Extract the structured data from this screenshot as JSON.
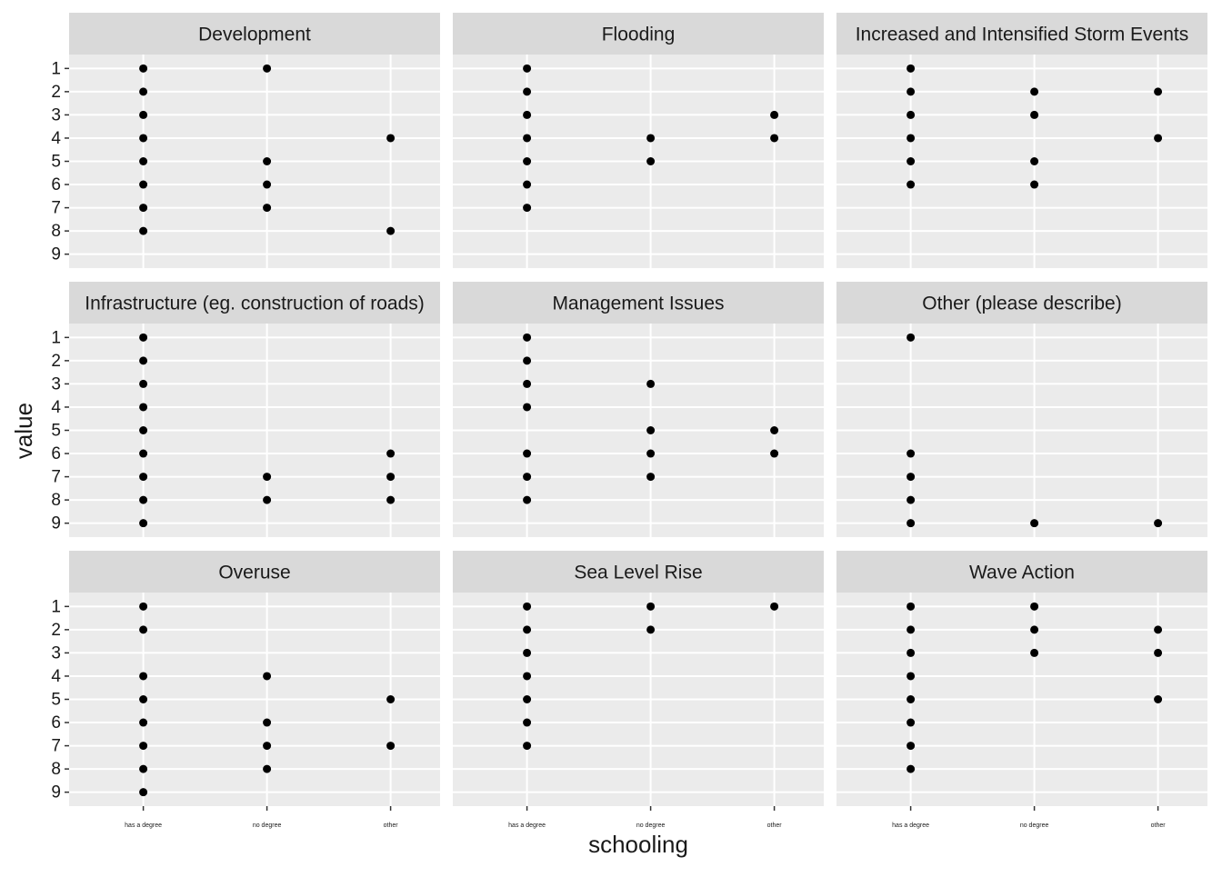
{
  "chart_data": {
    "type": "scatter",
    "x_label": "schooling",
    "y_label": "value",
    "categories": [
      "has a degree",
      "no degree",
      "other"
    ],
    "ylim": [
      0.4,
      9.6
    ],
    "y_reversed": true,
    "yticks": [
      1,
      2,
      3,
      4,
      5,
      6,
      7,
      8,
      9
    ],
    "grid": true,
    "color": "#000000",
    "facets": [
      {
        "title": "Development",
        "values": [
          [
            1,
            2,
            3,
            4,
            5,
            6,
            7,
            8
          ],
          [
            1,
            5,
            6,
            7
          ],
          [
            4,
            8
          ]
        ]
      },
      {
        "title": "Flooding",
        "values": [
          [
            1,
            2,
            3,
            4,
            5,
            6,
            7
          ],
          [
            4,
            5
          ],
          [
            3,
            4
          ]
        ]
      },
      {
        "title": "Increased and Intensified Storm Events",
        "values": [
          [
            1,
            2,
            3,
            4,
            5,
            6
          ],
          [
            2,
            3,
            5,
            6
          ],
          [
            2,
            4
          ]
        ]
      },
      {
        "title": "Infrastructure (eg. construction of roads)",
        "values": [
          [
            1,
            2,
            3,
            4,
            5,
            6,
            7,
            8,
            9
          ],
          [
            7,
            8
          ],
          [
            6,
            7,
            8
          ]
        ]
      },
      {
        "title": "Management Issues",
        "values": [
          [
            1,
            2,
            3,
            4,
            6,
            7,
            8
          ],
          [
            3,
            5,
            6,
            7
          ],
          [
            5,
            6
          ]
        ]
      },
      {
        "title": "Other (please describe)",
        "values": [
          [
            1,
            6,
            7,
            8,
            9
          ],
          [
            9
          ],
          [
            9
          ]
        ]
      },
      {
        "title": "Overuse",
        "values": [
          [
            1,
            2,
            4,
            5,
            6,
            7,
            8,
            9
          ],
          [
            4,
            6,
            7,
            8
          ],
          [
            5,
            7
          ]
        ]
      },
      {
        "title": "Sea Level Rise",
        "values": [
          [
            1,
            2,
            3,
            4,
            5,
            6,
            7
          ],
          [
            1,
            2
          ],
          [
            1
          ]
        ]
      },
      {
        "title": "Wave Action",
        "values": [
          [
            1,
            2,
            3,
            4,
            5,
            6,
            7,
            8
          ],
          [
            1,
            2,
            3
          ],
          [
            2,
            3,
            5
          ]
        ]
      }
    ]
  }
}
